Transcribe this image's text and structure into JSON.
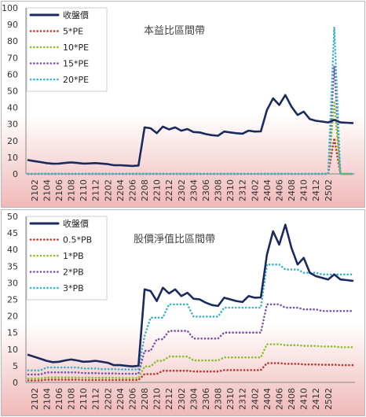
{
  "colors": {
    "panel_top": "#ffffff",
    "panel_bottom": "#f0b8b8",
    "price": "#1a2a5e",
    "band1": "#c0392b",
    "band2": "#8dbf2e",
    "band3": "#7a55a8",
    "band4": "#3bb3c8"
  },
  "x_tick_labels": [
    "2102",
    "2104",
    "2106",
    "2108",
    "2110",
    "2112",
    "2202",
    "2204",
    "2206",
    "2208",
    "2210",
    "2212",
    "2302",
    "2304",
    "2306",
    "2308",
    "2310",
    "2312",
    "2402",
    "2404",
    "2406",
    "2408",
    "2410",
    "2412",
    "2502"
  ],
  "chart_data": [
    {
      "type": "line",
      "title": "本益比區間帶",
      "xlabel": "",
      "ylabel": "",
      "ylim": [
        0,
        100
      ],
      "yticks": [
        0,
        10,
        20,
        30,
        40,
        50,
        60,
        70,
        80,
        90,
        100
      ],
      "x_start": "2021-01",
      "legend_position": "top-left",
      "series": [
        {
          "name": "收盤價",
          "style": "solid",
          "color": "price",
          "values": [
            8.3,
            7.7,
            7.1,
            6.5,
            6.1,
            6.2,
            6.6,
            6.9,
            6.6,
            6.2,
            6.3,
            6.5,
            6.2,
            5.9,
            5.2,
            5.2,
            5.0,
            4.8,
            5.0,
            28.0,
            27.5,
            24.5,
            28.5,
            26.8,
            28.0,
            26.0,
            27.0,
            25.2,
            25.0,
            24.0,
            23.3,
            23.0,
            25.5,
            25.0,
            24.5,
            24.2,
            26.0,
            25.5,
            25.6,
            38.5,
            45.5,
            41.5,
            47.5,
            40.5,
            35.5,
            37.5,
            33.0,
            32.0,
            31.5,
            31.0,
            32.5,
            31.0,
            30.8,
            30.6
          ]
        },
        {
          "name": "5*PE",
          "style": "dotted",
          "color": "band1",
          "values": [
            0,
            0,
            0,
            0,
            0,
            0,
            0,
            0,
            0,
            0,
            0,
            0,
            0,
            0,
            0,
            0,
            0,
            0,
            0,
            0,
            0,
            0,
            0,
            0,
            0,
            0,
            0,
            0,
            0,
            0,
            0,
            0,
            0,
            0,
            0,
            0,
            0,
            0,
            0,
            0,
            0,
            0,
            0,
            0,
            0,
            0,
            0,
            0,
            0,
            0,
            21.5,
            0,
            0,
            0
          ]
        },
        {
          "name": "10*PE",
          "style": "dotted",
          "color": "band2",
          "values": [
            0,
            0,
            0,
            0,
            0,
            0,
            0,
            0,
            0,
            0,
            0,
            0,
            0,
            0,
            0,
            0,
            0,
            0,
            0,
            0,
            0,
            0,
            0,
            0,
            0,
            0,
            0,
            0,
            0,
            0,
            0,
            0,
            0,
            0,
            0,
            0,
            0,
            0,
            0,
            0,
            0,
            0,
            0,
            0,
            0,
            0,
            0,
            0,
            0,
            0,
            43,
            0,
            0,
            0
          ]
        },
        {
          "name": "15*PE",
          "style": "dotted",
          "color": "band3",
          "values": [
            0,
            0,
            0,
            0,
            0,
            0,
            0,
            0,
            0,
            0,
            0,
            0,
            0,
            0,
            0,
            0,
            0,
            0,
            0,
            0,
            0,
            0,
            0,
            0,
            0,
            0,
            0,
            0,
            0,
            0,
            0,
            0,
            0,
            0,
            0,
            0,
            0,
            0,
            0,
            0,
            0,
            0,
            0,
            0,
            0,
            0,
            0,
            0,
            0,
            0,
            65,
            0,
            0,
            0
          ]
        },
        {
          "name": "20*PE",
          "style": "dotted",
          "color": "band4",
          "values": [
            0,
            0,
            0,
            0,
            0,
            0,
            0,
            0,
            0,
            0,
            0,
            0,
            0,
            0,
            0,
            0,
            0,
            0,
            0,
            0,
            0,
            0,
            0,
            0,
            0,
            0,
            0,
            0,
            0,
            0,
            0,
            0,
            0,
            0,
            0,
            0,
            0,
            0,
            0,
            0,
            0,
            0,
            0,
            0,
            0,
            0,
            0,
            0,
            0,
            0,
            88.5,
            0,
            0,
            0
          ]
        }
      ]
    },
    {
      "type": "line",
      "title": "股價淨值比區間帶",
      "xlabel": "",
      "ylabel": "",
      "ylim": [
        0,
        50
      ],
      "yticks": [
        0,
        5,
        10,
        15,
        20,
        25,
        30,
        35,
        40,
        45,
        50
      ],
      "x_start": "2021-01",
      "legend_position": "top-left",
      "series": [
        {
          "name": "收盤價",
          "style": "solid",
          "color": "price",
          "values": [
            8.3,
            7.7,
            7.1,
            6.5,
            6.1,
            6.2,
            6.6,
            6.9,
            6.6,
            6.2,
            6.3,
            6.5,
            6.2,
            5.9,
            5.2,
            5.2,
            5.0,
            4.8,
            5.0,
            28.0,
            27.5,
            24.5,
            28.5,
            26.8,
            28.0,
            26.0,
            27.0,
            25.2,
            25.0,
            24.0,
            23.3,
            23.0,
            25.5,
            25.0,
            24.5,
            24.2,
            26.0,
            25.5,
            25.6,
            38.5,
            45.5,
            41.5,
            47.5,
            40.5,
            35.5,
            37.5,
            33.0,
            32.0,
            31.5,
            31.0,
            32.5,
            31.0,
            30.8,
            30.6
          ]
        },
        {
          "name": "0.5*PB",
          "style": "dotted",
          "color": "band1",
          "values": [
            0.6,
            0.6,
            0.6,
            0.8,
            0.8,
            0.8,
            0.8,
            0.8,
            0.8,
            0.7,
            0.7,
            0.7,
            0.7,
            0.7,
            0.7,
            0.7,
            0.7,
            0.7,
            0.7,
            2.5,
            2.5,
            2.5,
            3.5,
            3.5,
            3.5,
            3.5,
            3.5,
            3.3,
            3.3,
            3.3,
            3.3,
            3.3,
            3.7,
            3.7,
            3.7,
            3.7,
            3.7,
            3.7,
            3.7,
            5.8,
            5.8,
            5.8,
            5.6,
            5.6,
            5.6,
            5.4,
            5.4,
            5.4,
            5.3,
            5.3,
            5.3,
            5.2,
            5.2,
            5.2
          ]
        },
        {
          "name": "1*PB",
          "style": "dotted",
          "color": "band2",
          "values": [
            1.2,
            1.2,
            1.2,
            1.5,
            1.5,
            1.5,
            1.5,
            1.5,
            1.5,
            1.4,
            1.4,
            1.4,
            1.4,
            1.4,
            1.4,
            1.3,
            1.3,
            1.3,
            1.3,
            4.8,
            4.8,
            6.5,
            6.5,
            7.8,
            7.8,
            7.8,
            7.8,
            6.6,
            6.6,
            6.6,
            6.6,
            6.6,
            7.5,
            7.5,
            7.5,
            7.5,
            7.5,
            7.5,
            7.5,
            11.5,
            11.5,
            11.5,
            11.2,
            11.2,
            11.2,
            11.0,
            11.0,
            11.0,
            10.8,
            10.8,
            10.8,
            10.6,
            10.6,
            10.6
          ]
        },
        {
          "name": "2*PB",
          "style": "dotted",
          "color": "band3",
          "values": [
            2.4,
            2.4,
            2.4,
            3.0,
            3.0,
            3.0,
            3.0,
            3.0,
            3.0,
            2.8,
            2.8,
            2.8,
            2.7,
            2.7,
            2.7,
            2.6,
            2.6,
            2.6,
            2.6,
            9.5,
            9.5,
            13.0,
            13.0,
            15.5,
            15.5,
            15.5,
            15.5,
            13.2,
            13.2,
            13.2,
            13.2,
            13.2,
            15.0,
            15.0,
            15.0,
            15.0,
            15.0,
            15.0,
            15.0,
            23.5,
            23.5,
            23.5,
            22.5,
            22.5,
            22.5,
            22.0,
            22.0,
            22.0,
            21.5,
            21.5,
            21.5,
            21.5,
            21.5,
            21.5
          ]
        },
        {
          "name": "3*PB",
          "style": "dotted",
          "color": "band4",
          "values": [
            3.6,
            3.6,
            3.6,
            4.5,
            4.5,
            4.5,
            4.5,
            4.5,
            4.5,
            4.2,
            4.2,
            4.2,
            4.0,
            4.0,
            4.0,
            3.9,
            3.9,
            3.9,
            3.9,
            14.0,
            19.5,
            19.5,
            19.5,
            23.5,
            23.5,
            23.5,
            23.5,
            19.8,
            19.8,
            19.8,
            19.8,
            19.8,
            22.5,
            22.5,
            22.5,
            22.5,
            22.5,
            22.5,
            22.5,
            35.5,
            35.5,
            35.5,
            34.0,
            34.0,
            34.0,
            33.0,
            33.0,
            33.0,
            32.5,
            32.5,
            32.5,
            32.5,
            32.5,
            32.5
          ]
        }
      ]
    }
  ]
}
